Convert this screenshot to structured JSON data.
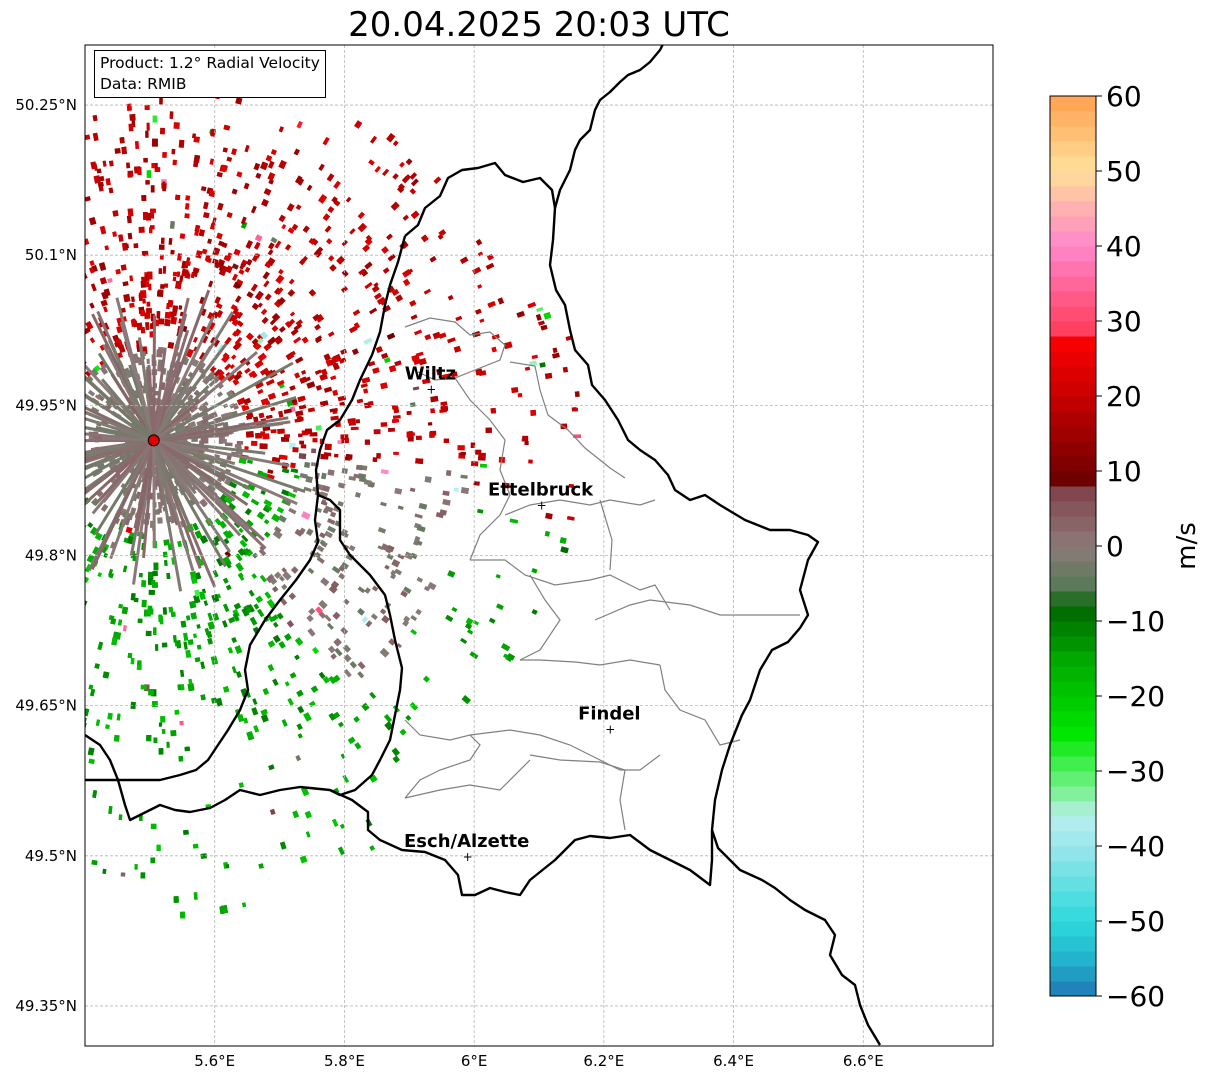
{
  "title": "20.04.2025 20:03 UTC",
  "info_box": {
    "product": "Product: 1.2° Radial Velocity",
    "data": "Data: RMIB"
  },
  "map": {
    "lon_range": [
      5.4,
      6.8
    ],
    "lat_range": [
      49.31,
      50.31
    ],
    "lon_ticks": [
      {
        "value": 5.6,
        "label": "5.6°E"
      },
      {
        "value": 5.8,
        "label": "5.8°E"
      },
      {
        "value": 6.0,
        "label": "6°E"
      },
      {
        "value": 6.2,
        "label": "6.2°E"
      },
      {
        "value": 6.4,
        "label": "6.4°E"
      },
      {
        "value": 6.6,
        "label": "6.6°E"
      }
    ],
    "lat_ticks": [
      {
        "value": 49.35,
        "label": "49.35°N"
      },
      {
        "value": 49.5,
        "label": "49.5°N"
      },
      {
        "value": 49.65,
        "label": "49.65°N"
      },
      {
        "value": 49.8,
        "label": "49.8°N"
      },
      {
        "value": 49.95,
        "label": "49.95°N"
      },
      {
        "value": 50.1,
        "label": "50.1°N"
      },
      {
        "value": 50.25,
        "label": "50.25°N"
      }
    ],
    "grid": true,
    "radar_site": {
      "lon": 5.506,
      "lat": 49.915
    },
    "places": [
      {
        "name": "Wiltz",
        "lon": 5.934,
        "lat": 49.966
      },
      {
        "name": "Ettelbruck",
        "lon": 6.104,
        "lat": 49.85
      },
      {
        "name": "Findel",
        "lon": 6.21,
        "lat": 49.626
      },
      {
        "name": "Esch/Alzette",
        "lon": 5.99,
        "lat": 49.499
      }
    ]
  },
  "colorbar": {
    "label": "m/s",
    "min": -60,
    "max": 60,
    "ticks": [
      {
        "value": 60,
        "label": "60"
      },
      {
        "value": 50,
        "label": "50"
      },
      {
        "value": 40,
        "label": "40"
      },
      {
        "value": 30,
        "label": "30"
      },
      {
        "value": 20,
        "label": "20"
      },
      {
        "value": 10,
        "label": "10"
      },
      {
        "value": 0,
        "label": "0"
      },
      {
        "value": -10,
        "label": "−10"
      },
      {
        "value": -20,
        "label": "−20"
      },
      {
        "value": -30,
        "label": "−30"
      },
      {
        "value": -40,
        "label": "−40"
      },
      {
        "value": -50,
        "label": "−50"
      },
      {
        "value": -60,
        "label": "−60"
      }
    ],
    "stops": [
      {
        "v": -60,
        "c": "#1f77b4"
      },
      {
        "v": -55,
        "c": "#22b4cc"
      },
      {
        "v": -50,
        "c": "#2ed9dc"
      },
      {
        "v": -40,
        "c": "#9ae6ea"
      },
      {
        "v": -36,
        "c": "#b8eef0"
      },
      {
        "v": -34,
        "c": "#93f0b0"
      },
      {
        "v": -30,
        "c": "#50f060"
      },
      {
        "v": -25,
        "c": "#00e600"
      },
      {
        "v": -15,
        "c": "#00a800"
      },
      {
        "v": -8,
        "c": "#006400"
      },
      {
        "v": -6,
        "c": "#527a52"
      },
      {
        "v": 0,
        "c": "#8c7a7a"
      },
      {
        "v": 8,
        "c": "#804048"
      },
      {
        "v": 9,
        "c": "#6e0000"
      },
      {
        "v": 20,
        "c": "#c80000"
      },
      {
        "v": 28,
        "c": "#ff0000"
      },
      {
        "v": 29,
        "c": "#ff4060"
      },
      {
        "v": 40,
        "c": "#ff88cc"
      },
      {
        "v": 45,
        "c": "#ffb0b0"
      },
      {
        "v": 50,
        "c": "#ffe09a"
      },
      {
        "v": 60,
        "c": "#ffa050"
      }
    ]
  }
}
